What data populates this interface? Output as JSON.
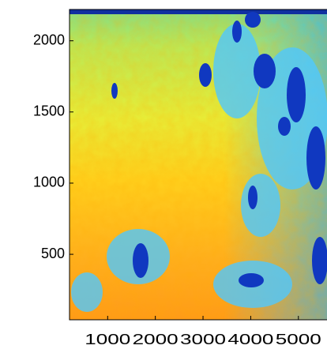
{
  "chart_data": {
    "type": "image",
    "xlim": [
      200,
      5600
    ],
    "xticks": [
      1000,
      2000,
      3000,
      4000,
      5000
    ],
    "ylim": [
      40,
      2220
    ],
    "yticks": [
      500,
      1000,
      1500,
      2000
    ]
  }
}
